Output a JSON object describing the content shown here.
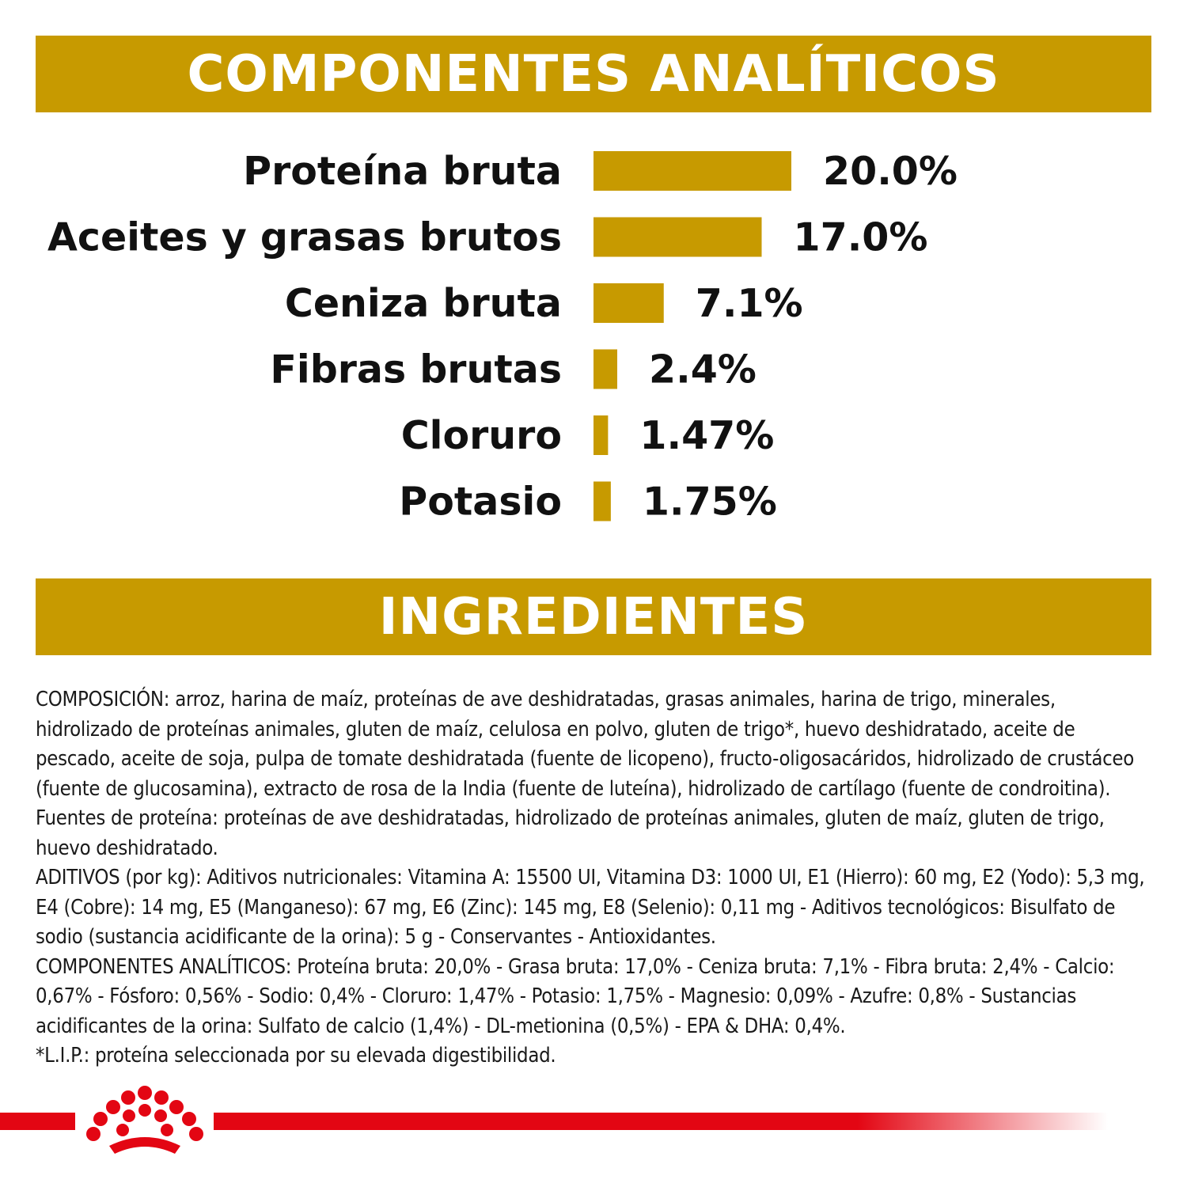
{
  "colors": {
    "accent": "#C79A00",
    "brand_red": "#E30613"
  },
  "banners": {
    "analytic_title": "COMPONENTES ANALÍTICOS",
    "ingredients_title": "INGREDIENTES"
  },
  "chart_data": {
    "type": "bar",
    "orientation": "horizontal",
    "categories": [
      "Proteína bruta",
      "Aceites y grasas brutos",
      "Ceniza bruta",
      "Fibras brutas",
      "Cloruro",
      "Potasio"
    ],
    "values": [
      20.0,
      17.0,
      7.1,
      2.4,
      1.47,
      1.75
    ],
    "value_labels": [
      "20.0%",
      "17.0%",
      "7.1%",
      "2.4%",
      "1.47%",
      "1.75%"
    ],
    "unit": "%",
    "grid": false,
    "legend": "none"
  },
  "ingredients": {
    "composition": "COMPOSICIÓN: arroz, harina de maíz, proteínas de ave deshidratadas, grasas animales, harina de trigo, minerales, hidrolizado de proteínas animales, gluten de maíz, celulosa en polvo, gluten de trigo*, huevo deshidratado, aceite de pescado, aceite de soja, pulpa de tomate deshidratada (fuente de licopeno), fructo-oligosacáridos, hidrolizado de crustáceo (fuente de glucosamina), extracto de rosa de la India (fuente de luteína), hidrolizado de cartílago (fuente de condroitina). Fuentes de proteína: proteínas de ave deshidratadas, hidrolizado de proteínas animales, gluten de maíz, gluten de trigo, huevo deshidratado.",
    "additives": "ADITIVOS (por kg): Aditivos nutricionales: Vitamina A: 15500 UI, Vitamina D3: 1000 UI, E1 (Hierro): 60 mg, E2 (Yodo): 5,3 mg, E4 (Cobre): 14 mg, E5 (Manganeso): 67 mg, E6 (Zinc): 145 mg, E8 (Selenio): 0,11 mg - Aditivos tecnológicos: Bisulfato de sodio (sustancia acidificante de la orina): 5 g - Conservantes - Antioxidantes.",
    "analytic": "COMPONENTES ANALÍTICOS: Proteína bruta: 20,0% - Grasa bruta: 17,0% - Ceniza bruta: 7,1% - Fibra bruta: 2,4% - Calcio: 0,67% - Fósforo: 0,56% - Sodio: 0,4% - Cloruro: 1,47% - Potasio: 1,75% - Magnesio: 0,09% - Azufre: 0,8% - Sustancias acidificantes de la orina: Sulfato de calcio (1,4%) - DL-metionina (0,5%) - EPA & DHA: 0,4%.",
    "footnote": "*L.I.P.: proteína seleccionada por su elevada digestibilidad."
  },
  "footer": {
    "logo_icon": "royal-crown-logo-icon"
  }
}
